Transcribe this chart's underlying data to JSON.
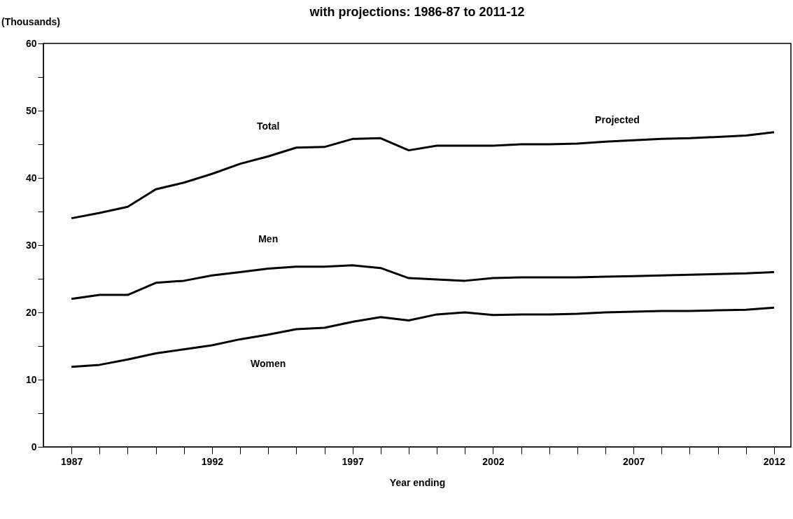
{
  "chart_data": {
    "type": "line",
    "title": "with projections: 1986-87 to 2011-12",
    "xlabel": "Year ending",
    "ylabel": "(Thousands)",
    "xlim": [
      1986,
      2012.6
    ],
    "ylim": [
      0,
      60
    ],
    "xticks": [
      1987,
      {
        "value": 1988,
        "label": null
      },
      {
        "value": 1989,
        "label": null
      },
      {
        "value": 1990,
        "label": null
      },
      {
        "value": 1991,
        "label": null
      },
      1992,
      {
        "value": 1993,
        "label": null
      },
      {
        "value": 1994,
        "label": null
      },
      {
        "value": 1995,
        "label": null
      },
      {
        "value": 1996,
        "label": null
      },
      1997,
      {
        "value": 1998,
        "label": null
      },
      {
        "value": 1999,
        "label": null
      },
      {
        "value": 2000,
        "label": null
      },
      {
        "value": 2001,
        "label": null
      },
      2002,
      {
        "value": 2003,
        "label": null
      },
      {
        "value": 2004,
        "label": null
      },
      {
        "value": 2005,
        "label": null
      },
      {
        "value": 2006,
        "label": null
      },
      2007,
      {
        "value": 2008,
        "label": null
      },
      {
        "value": 2009,
        "label": null
      },
      {
        "value": 2010,
        "label": null
      },
      {
        "value": 2011,
        "label": null
      },
      2012
    ],
    "yticks": [
      0,
      {
        "value": 5,
        "label": null
      },
      10,
      {
        "value": 15,
        "label": null
      },
      20,
      {
        "value": 25,
        "label": null
      },
      30,
      {
        "value": 35,
        "label": null
      },
      40,
      {
        "value": 45,
        "label": null
      },
      50,
      {
        "value": 55,
        "label": null
      },
      60
    ],
    "grid": false,
    "legend": false,
    "marker": "none",
    "line_style": "solid",
    "x": [
      1987,
      1988,
      1989,
      1990,
      1991,
      1992,
      1993,
      1994,
      1995,
      1996,
      1997,
      1998,
      1999,
      2000,
      2001,
      2002,
      2003,
      2004,
      2005,
      2006,
      2007,
      2008,
      2009,
      2010,
      2011,
      2012
    ],
    "series": [
      {
        "name": "Total",
        "color": "#000000",
        "values": [
          34.0,
          34.8,
          35.7,
          38.3,
          39.3,
          40.6,
          42.1,
          43.2,
          44.5,
          44.6,
          45.8,
          45.9,
          44.1,
          44.8,
          44.8,
          44.8,
          45.0,
          45.0,
          45.1,
          45.4,
          45.6,
          45.8,
          45.9,
          46.1,
          46.3,
          46.8
        ]
      },
      {
        "name": "Men",
        "color": "#000000",
        "values": [
          22.0,
          22.6,
          22.6,
          24.4,
          24.7,
          25.5,
          26.0,
          26.5,
          26.8,
          26.8,
          27.0,
          26.6,
          25.1,
          24.9,
          24.7,
          25.1,
          25.2,
          25.2,
          25.2,
          25.3,
          25.4,
          25.5,
          25.6,
          25.7,
          25.8,
          26.0
        ]
      },
      {
        "name": "Women",
        "color": "#000000",
        "values": [
          11.9,
          12.2,
          13.0,
          13.9,
          14.5,
          15.1,
          16.0,
          16.7,
          17.5,
          17.7,
          18.6,
          19.3,
          18.8,
          19.7,
          20.0,
          19.6,
          19.7,
          19.7,
          19.8,
          20.0,
          20.1,
          20.2,
          20.2,
          20.3,
          20.4,
          20.7
        ]
      }
    ],
    "annotations": [
      "Projected"
    ]
  }
}
